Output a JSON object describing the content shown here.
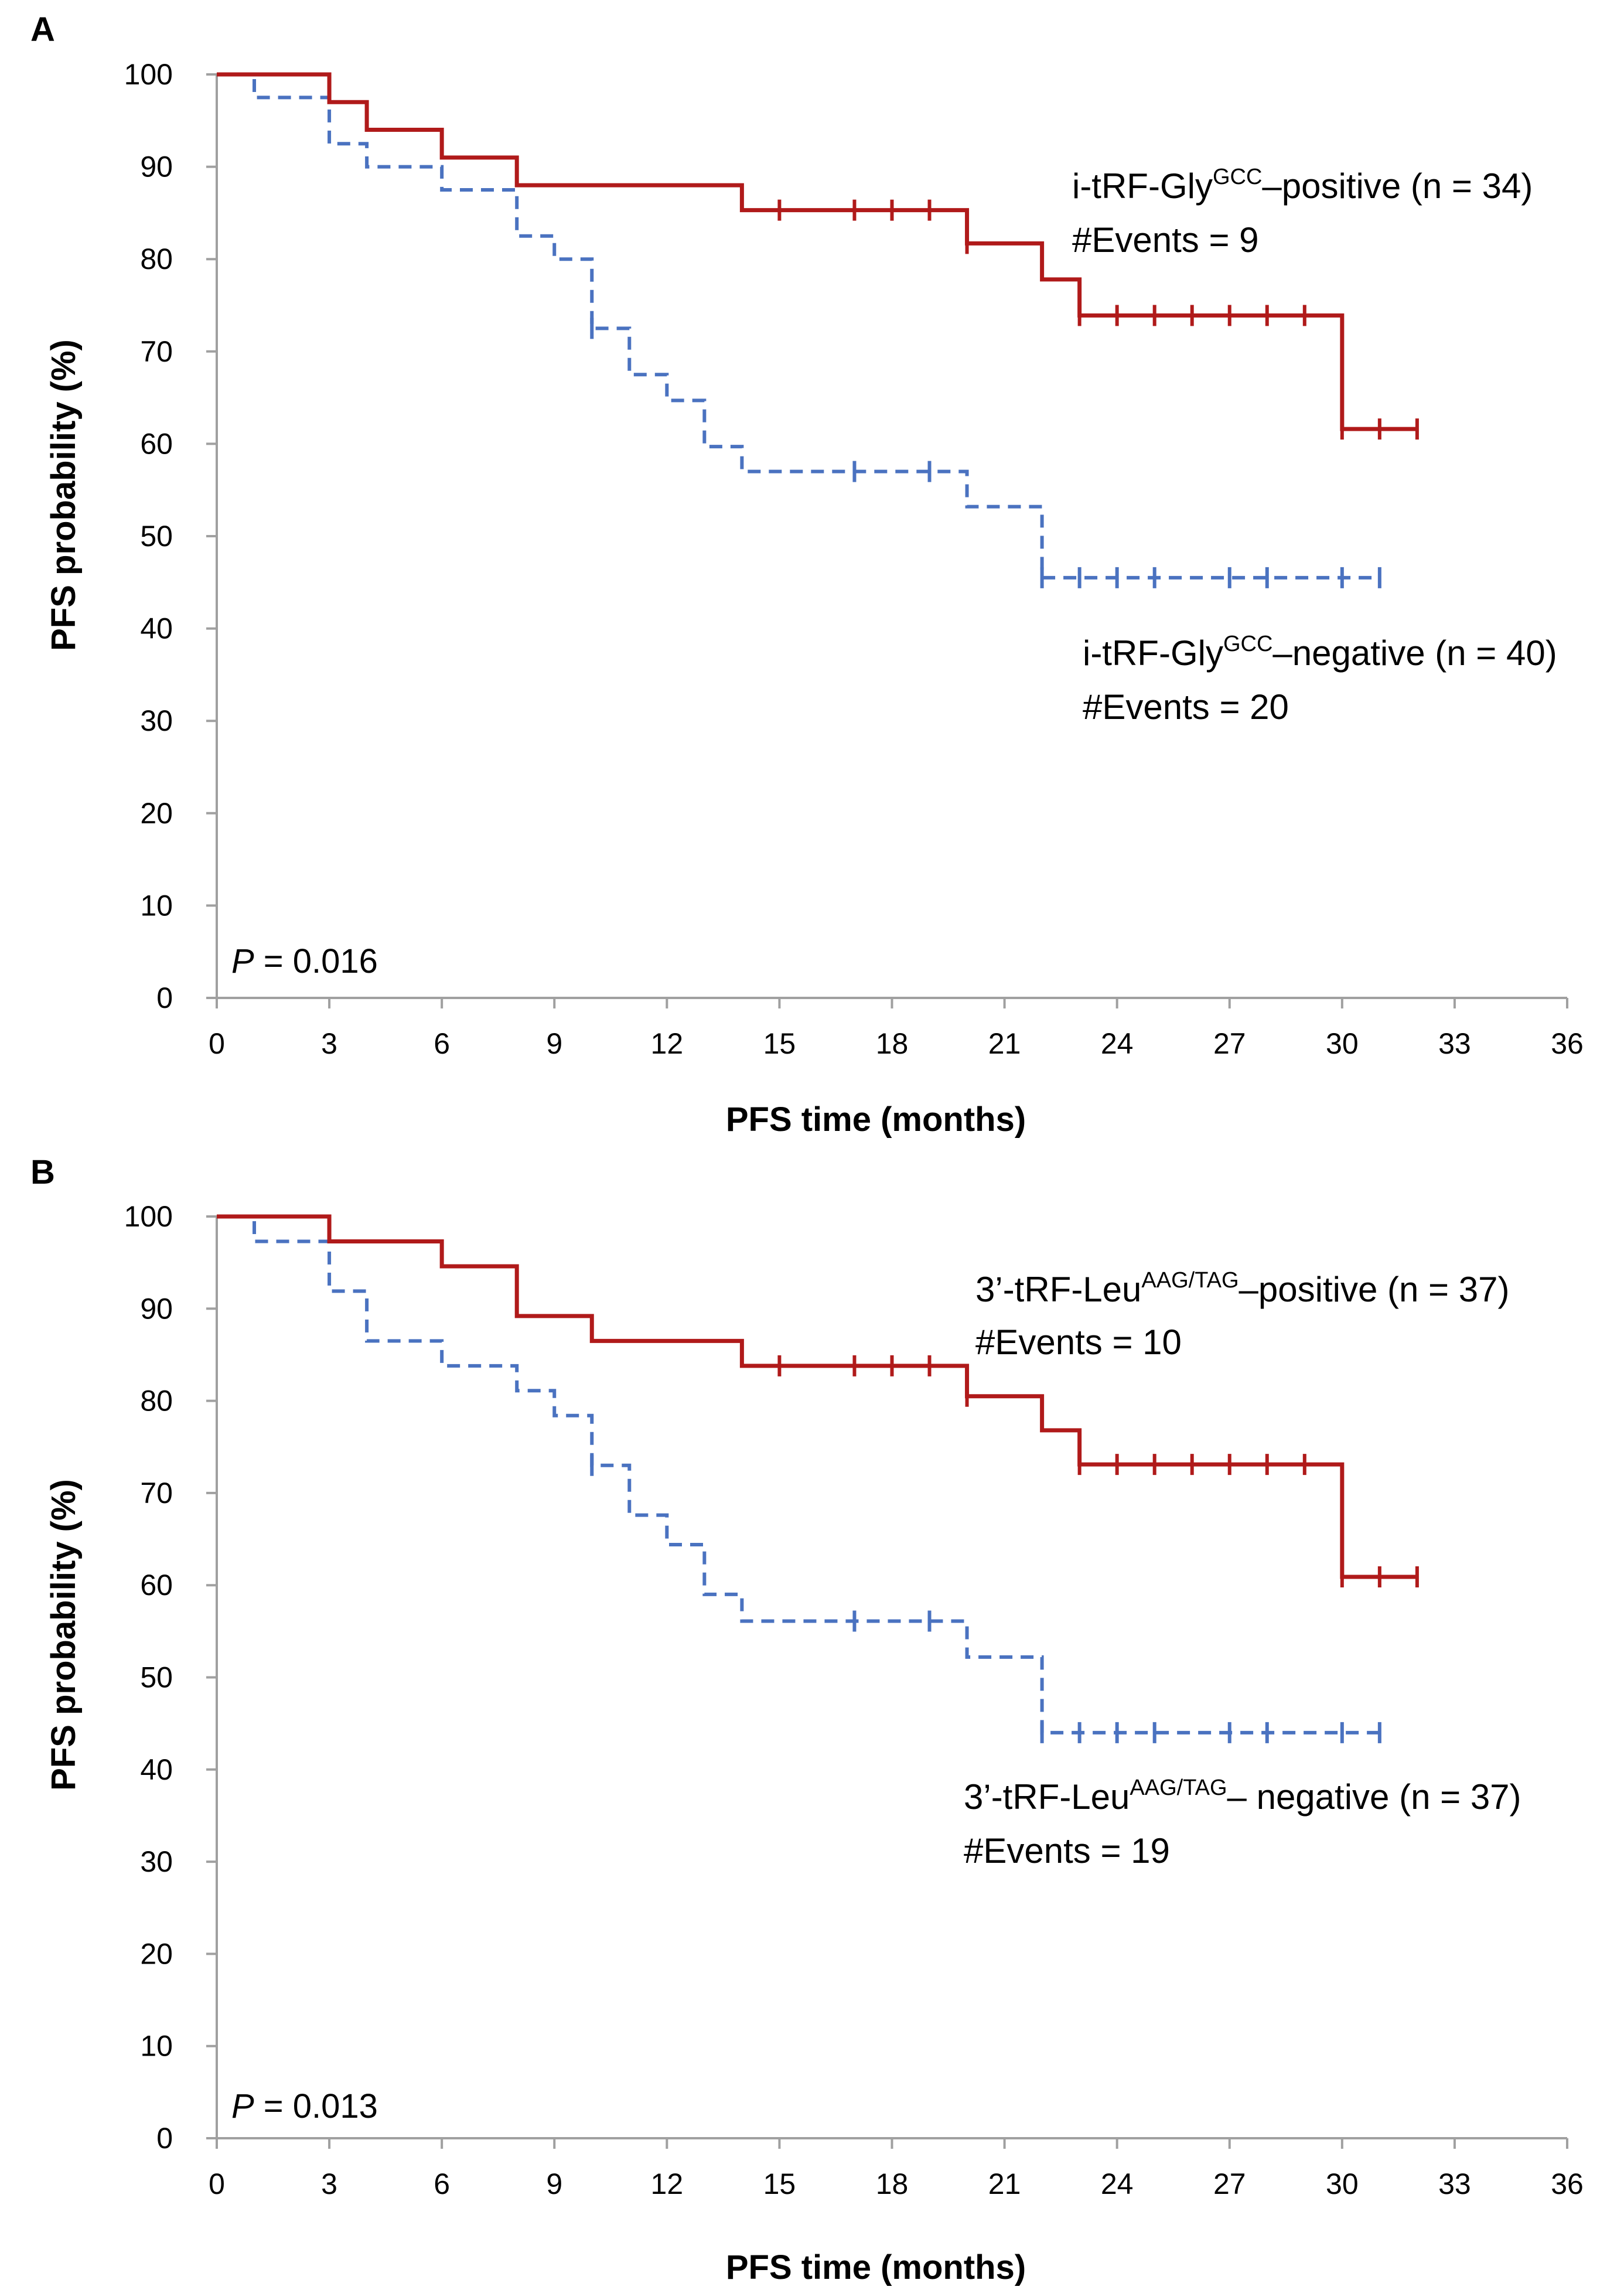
{
  "colors": {
    "positive": "#b01a1a",
    "negative": "#4a72c0",
    "axis": "#a0a0a0"
  },
  "chart_data": [
    {
      "panel": "A",
      "type": "line",
      "subtype": "kaplan-meier",
      "xlabel": "PFS time (months)",
      "ylabel": "PFS probability (%)",
      "xlim": [
        0,
        36
      ],
      "ylim": [
        0,
        100
      ],
      "xticks": [
        0,
        3,
        6,
        9,
        12,
        15,
        18,
        21,
        24,
        27,
        30,
        33,
        36
      ],
      "yticks": [
        0,
        10,
        20,
        30,
        40,
        50,
        60,
        70,
        80,
        90,
        100
      ],
      "p_label": "P",
      "p_value": " = 0.016",
      "series": [
        {
          "name": "positive",
          "style": "solid",
          "label_prefix": "i-tRF-Gly",
          "label_sup": "GCC",
          "label_suffix": "–positive  (n = 34)",
          "events_text": "#Events = 9",
          "steps": [
            [
              0,
              100
            ],
            [
              3,
              97
            ],
            [
              4,
              94
            ],
            [
              6,
              91
            ],
            [
              8,
              88
            ],
            [
              14,
              85.3
            ],
            [
              20,
              81.7
            ],
            [
              22,
              77.8
            ],
            [
              23,
              73.9
            ],
            [
              30,
              61.6
            ],
            [
              32,
              61.6
            ]
          ],
          "censored": [
            [
              15,
              85.3
            ],
            [
              17,
              85.3
            ],
            [
              18,
              85.3
            ],
            [
              19,
              85.3
            ],
            [
              20,
              81.7
            ],
            [
              23,
              73.9
            ],
            [
              24,
              73.9
            ],
            [
              25,
              73.9
            ],
            [
              26,
              73.9
            ],
            [
              27,
              73.9
            ],
            [
              28,
              73.9
            ],
            [
              29,
              73.9
            ],
            [
              30,
              61.6
            ],
            [
              31,
              61.6
            ],
            [
              32,
              61.6
            ]
          ]
        },
        {
          "name": "negative",
          "style": "dashed",
          "label_prefix": "i-tRF-Gly",
          "label_sup": "GCC",
          "label_suffix": "–negative  (n = 40)",
          "events_text": "#Events = 20",
          "steps": [
            [
              0,
              100
            ],
            [
              1,
              97.5
            ],
            [
              3,
              92.5
            ],
            [
              4,
              90
            ],
            [
              6,
              87.5
            ],
            [
              8,
              82.5
            ],
            [
              9,
              80
            ],
            [
              10,
              72.5
            ],
            [
              11,
              67.5
            ],
            [
              12,
              64.7
            ],
            [
              13,
              59.7
            ],
            [
              14,
              57
            ],
            [
              20,
              53.2
            ],
            [
              22,
              45.5
            ],
            [
              31,
              45.5
            ]
          ],
          "censored": [
            [
              10,
              72.5
            ],
            [
              17,
              57
            ],
            [
              19,
              57
            ],
            [
              22,
              45.5
            ],
            [
              23,
              45.5
            ],
            [
              24,
              45.5
            ],
            [
              25,
              45.5
            ],
            [
              27,
              45.5
            ],
            [
              28,
              45.5
            ],
            [
              30,
              45.5
            ],
            [
              31,
              45.5
            ]
          ]
        }
      ]
    },
    {
      "panel": "B",
      "type": "line",
      "subtype": "kaplan-meier",
      "xlabel": "PFS time (months)",
      "ylabel": "PFS probability (%)",
      "xlim": [
        0,
        36
      ],
      "ylim": [
        0,
        100
      ],
      "xticks": [
        0,
        3,
        6,
        9,
        12,
        15,
        18,
        21,
        24,
        27,
        30,
        33,
        36
      ],
      "yticks": [
        0,
        10,
        20,
        30,
        40,
        50,
        60,
        70,
        80,
        90,
        100
      ],
      "p_label": "P",
      "p_value": " = 0.013",
      "series": [
        {
          "name": "positive",
          "style": "solid",
          "label_prefix": "3’-tRF-Leu",
          "label_sup": "AAG/TAG",
          "label_suffix": "–positive  (n = 37)",
          "events_text": "#Events = 10",
          "steps": [
            [
              0,
              100
            ],
            [
              3,
              97.3
            ],
            [
              6,
              94.6
            ],
            [
              8,
              89.2
            ],
            [
              10,
              86.5
            ],
            [
              14,
              83.8
            ],
            [
              20,
              80.5
            ],
            [
              22,
              76.8
            ],
            [
              23,
              73.1
            ],
            [
              30,
              60.9
            ],
            [
              32,
              60.9
            ]
          ],
          "censored": [
            [
              15,
              83.8
            ],
            [
              17,
              83.8
            ],
            [
              18,
              83.8
            ],
            [
              19,
              83.8
            ],
            [
              20,
              80.5
            ],
            [
              23,
              73.1
            ],
            [
              24,
              73.1
            ],
            [
              25,
              73.1
            ],
            [
              26,
              73.1
            ],
            [
              27,
              73.1
            ],
            [
              28,
              73.1
            ],
            [
              29,
              73.1
            ],
            [
              30,
              60.9
            ],
            [
              31,
              60.9
            ],
            [
              32,
              60.9
            ]
          ]
        },
        {
          "name": "negative",
          "style": "dashed",
          "label_prefix": "3’-tRF-Leu",
          "label_sup": "AAG/TAG",
          "label_suffix": "– negative  (n = 37)",
          "events_text": "#Events = 19",
          "steps": [
            [
              0,
              100
            ],
            [
              1,
              97.3
            ],
            [
              3,
              91.9
            ],
            [
              4,
              86.5
            ],
            [
              6,
              83.8
            ],
            [
              8,
              81.1
            ],
            [
              9,
              78.4
            ],
            [
              10,
              73
            ],
            [
              11,
              67.6
            ],
            [
              12,
              64.4
            ],
            [
              13,
              59
            ],
            [
              14,
              56.1
            ],
            [
              20,
              52.2
            ],
            [
              22,
              44
            ],
            [
              31,
              44
            ]
          ],
          "censored": [
            [
              10,
              73
            ],
            [
              17,
              56.1
            ],
            [
              19,
              56.1
            ],
            [
              22,
              44
            ],
            [
              23,
              44
            ],
            [
              24,
              44
            ],
            [
              25,
              44
            ],
            [
              27,
              44
            ],
            [
              28,
              44
            ],
            [
              30,
              44
            ],
            [
              31,
              44
            ]
          ]
        }
      ]
    }
  ]
}
